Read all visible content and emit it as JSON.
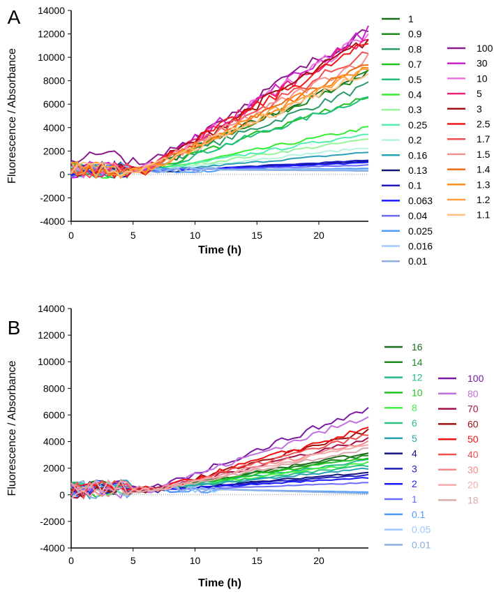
{
  "chart_data": [
    {
      "type": "line",
      "panel_label": "A",
      "xlabel": "Time (h)",
      "ylabel": "Fluorescence / Absorbance",
      "xlim": [
        0,
        24
      ],
      "ylim": [
        -4000,
        14000
      ],
      "xticks": [
        0,
        5,
        10,
        15,
        20
      ],
      "yticks": [
        -4000,
        -2000,
        0,
        2000,
        4000,
        6000,
        8000,
        10000,
        12000,
        14000
      ],
      "legend_placement": "right",
      "grid": false,
      "zero_line": "dotted",
      "series": [
        {
          "name": "1",
          "color": "#1b6b1b",
          "onset": 6,
          "final": 8700
        },
        {
          "name": "0.9",
          "color": "#1e8a1e",
          "onset": 6,
          "final": 8600
        },
        {
          "name": "0.8",
          "color": "#2a9a6a",
          "onset": 6,
          "final": 7600
        },
        {
          "name": "0.7",
          "color": "#22c022",
          "onset": 6.5,
          "final": 6700
        },
        {
          "name": "0.5",
          "color": "#1fbf80",
          "onset": 6.5,
          "final": 6600
        },
        {
          "name": "0.4",
          "color": "#33ee33",
          "onset": 7,
          "final": 4000
        },
        {
          "name": "0.3",
          "color": "#99f599",
          "onset": 7,
          "final": 3000
        },
        {
          "name": "0.25",
          "color": "#55eeb0",
          "onset": 7,
          "final": 3500
        },
        {
          "name": "0.2",
          "color": "#b5f5dc",
          "onset": 7,
          "final": 2300
        },
        {
          "name": "0.16",
          "color": "#2a9fb8",
          "onset": 8,
          "final": 1900
        },
        {
          "name": "0.13",
          "color": "#14147a",
          "onset": 9,
          "final": 1100
        },
        {
          "name": "0.1",
          "color": "#1c1cc0",
          "onset": 9,
          "final": 1200
        },
        {
          "name": "0.063",
          "color": "#1a1aff",
          "onset": 9,
          "final": 1000
        },
        {
          "name": "0.04",
          "color": "#6a6aff",
          "onset": 10,
          "final": 800
        },
        {
          "name": "0.025",
          "color": "#4f9cff",
          "onset": 12,
          "final": 500
        },
        {
          "name": "0.016",
          "color": "#9cc8ff",
          "onset": 12,
          "final": 400
        },
        {
          "name": "0.01",
          "color": "#8aaee0",
          "onset": 12,
          "final": 300
        },
        {
          "name": "100",
          "color": "#8a1a8a",
          "onset": 5.5,
          "final": 12500,
          "baseline": 1500
        },
        {
          "name": "30",
          "color": "#cc22cc",
          "onset": 6,
          "final": 12300
        },
        {
          "name": "10",
          "color": "#f070e0",
          "onset": 6,
          "final": 12000
        },
        {
          "name": "5",
          "color": "#f0207a",
          "onset": 6,
          "final": 11800
        },
        {
          "name": "3",
          "color": "#a01010",
          "onset": 6,
          "final": 11500
        },
        {
          "name": "2.5",
          "color": "#f01818",
          "onset": 6,
          "final": 11200
        },
        {
          "name": "1.7",
          "color": "#f05050",
          "onset": 6,
          "final": 10500
        },
        {
          "name": "1.5",
          "color": "#f59090",
          "onset": 6,
          "final": 10000
        },
        {
          "name": "1.4",
          "color": "#f06a10",
          "onset": 6,
          "final": 9500
        },
        {
          "name": "1.3",
          "color": "#ff8a1a",
          "onset": 6,
          "final": 9300
        },
        {
          "name": "1.2",
          "color": "#ffa040",
          "onset": 6,
          "final": 9000
        },
        {
          "name": "1.1",
          "color": "#ffc080",
          "onset": 6,
          "final": 8800
        }
      ]
    },
    {
      "type": "line",
      "panel_label": "B",
      "xlabel": "Time (h)",
      "ylabel": "Fluorescence / Absorbance",
      "xlim": [
        0,
        24
      ],
      "ylim": [
        -4000,
        14000
      ],
      "xticks": [
        0,
        5,
        10,
        15,
        20
      ],
      "yticks": [
        -4000,
        -2000,
        0,
        2000,
        4000,
        6000,
        8000,
        10000,
        12000,
        14000
      ],
      "legend_placement": "right",
      "grid": false,
      "zero_line": "dotted",
      "series": [
        {
          "name": "16",
          "color": "#1b6b1b",
          "onset": 7,
          "final": 3200
        },
        {
          "name": "14",
          "color": "#1e8a1e",
          "onset": 7,
          "final": 3000
        },
        {
          "name": "12",
          "color": "#22bb88",
          "onset": 7,
          "final": 2600
        },
        {
          "name": "10",
          "color": "#22c022",
          "onset": 7,
          "final": 2800
        },
        {
          "name": "8",
          "color": "#44f044",
          "onset": 7,
          "final": 2400
        },
        {
          "name": "6",
          "color": "#2ac080",
          "onset": 7,
          "final": 2200
        },
        {
          "name": "5",
          "color": "#2a9fb8",
          "onset": 7,
          "final": 2000
        },
        {
          "name": "4",
          "color": "#14147a",
          "onset": 8,
          "final": 1700
        },
        {
          "name": "3",
          "color": "#1c1cc0",
          "onset": 8,
          "final": 1500
        },
        {
          "name": "2",
          "color": "#1a1aff",
          "onset": 8,
          "final": 1300
        },
        {
          "name": "1",
          "color": "#6a6aff",
          "onset": 9,
          "final": 900
        },
        {
          "name": "0.1",
          "color": "#4f9cff",
          "onset": 12,
          "final": 200
        },
        {
          "name": "0.05",
          "color": "#9cc8ff",
          "onset": 12,
          "final": 100
        },
        {
          "name": "0.01",
          "color": "#8aaee0",
          "onset": 12,
          "final": 100
        },
        {
          "name": "100",
          "color": "#7a1aa0",
          "onset": 6.5,
          "final": 6500
        },
        {
          "name": "80",
          "color": "#c070e0",
          "onset": 6.5,
          "final": 5900
        },
        {
          "name": "70",
          "color": "#a0104a",
          "onset": 7,
          "final": 4200
        },
        {
          "name": "60",
          "color": "#a01010",
          "onset": 7,
          "final": 4800
        },
        {
          "name": "50",
          "color": "#f01010",
          "onset": 7,
          "final": 5000
        },
        {
          "name": "40",
          "color": "#f05050",
          "onset": 7,
          "final": 4500
        },
        {
          "name": "30",
          "color": "#f58a8a",
          "onset": 7,
          "final": 4000
        },
        {
          "name": "20",
          "color": "#f5aaaa",
          "onset": 7,
          "final": 3800
        },
        {
          "name": "18",
          "color": "#d8aaaa",
          "onset": 7,
          "final": 3500
        }
      ]
    }
  ]
}
